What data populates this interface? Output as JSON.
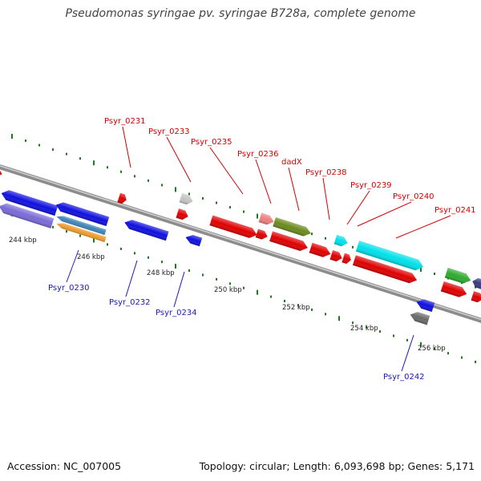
{
  "title": "Pseudomonas syringae pv. syringae B728a, complete genome",
  "footer": {
    "accession": "Accession: NC_007005",
    "topology": "Topology: circular; Length: 6,093,698 bp; Genes: 5,171"
  },
  "colors": {
    "backbone": "#8c8c8c",
    "tick_dots": "#1f7a1f",
    "label_top": "#d40000",
    "label_bottom": "#1a1ab4"
  },
  "scale_labels": [
    "244 kbp",
    "246 kbp",
    "248 kbp",
    "250 kbp",
    "252 kbp",
    "254 kbp",
    "256 kbp"
  ],
  "gene_labels_top": [
    "Psyr_0231",
    "Psyr_0233",
    "Psyr_0235",
    "Psyr_0236",
    "dadX",
    "Psyr_0238",
    "Psyr_0239",
    "Psyr_0240",
    "Psyr_0241"
  ],
  "gene_labels_bottom": [
    "Psyr_0230",
    "Psyr_0232",
    "Psyr_0234",
    "Psyr_0242"
  ],
  "gene_colors": {
    "forward_red": "#e00000",
    "forward_green": "#2eaa2e",
    "forward_olive": "#6b8a1e",
    "forward_cyan": "#00e0ea",
    "forward_pink": "#ec7f80",
    "forward_grey": "#c4c4c4",
    "reverse_blue": "#1010e0",
    "reverse_lavender": "#7a6ad8",
    "reverse_steel": "#3f84b8",
    "reverse_orange": "#ee9a2a",
    "reverse_darkgrey": "#6a6a6a",
    "reverse_navy": "#3a3a80"
  }
}
